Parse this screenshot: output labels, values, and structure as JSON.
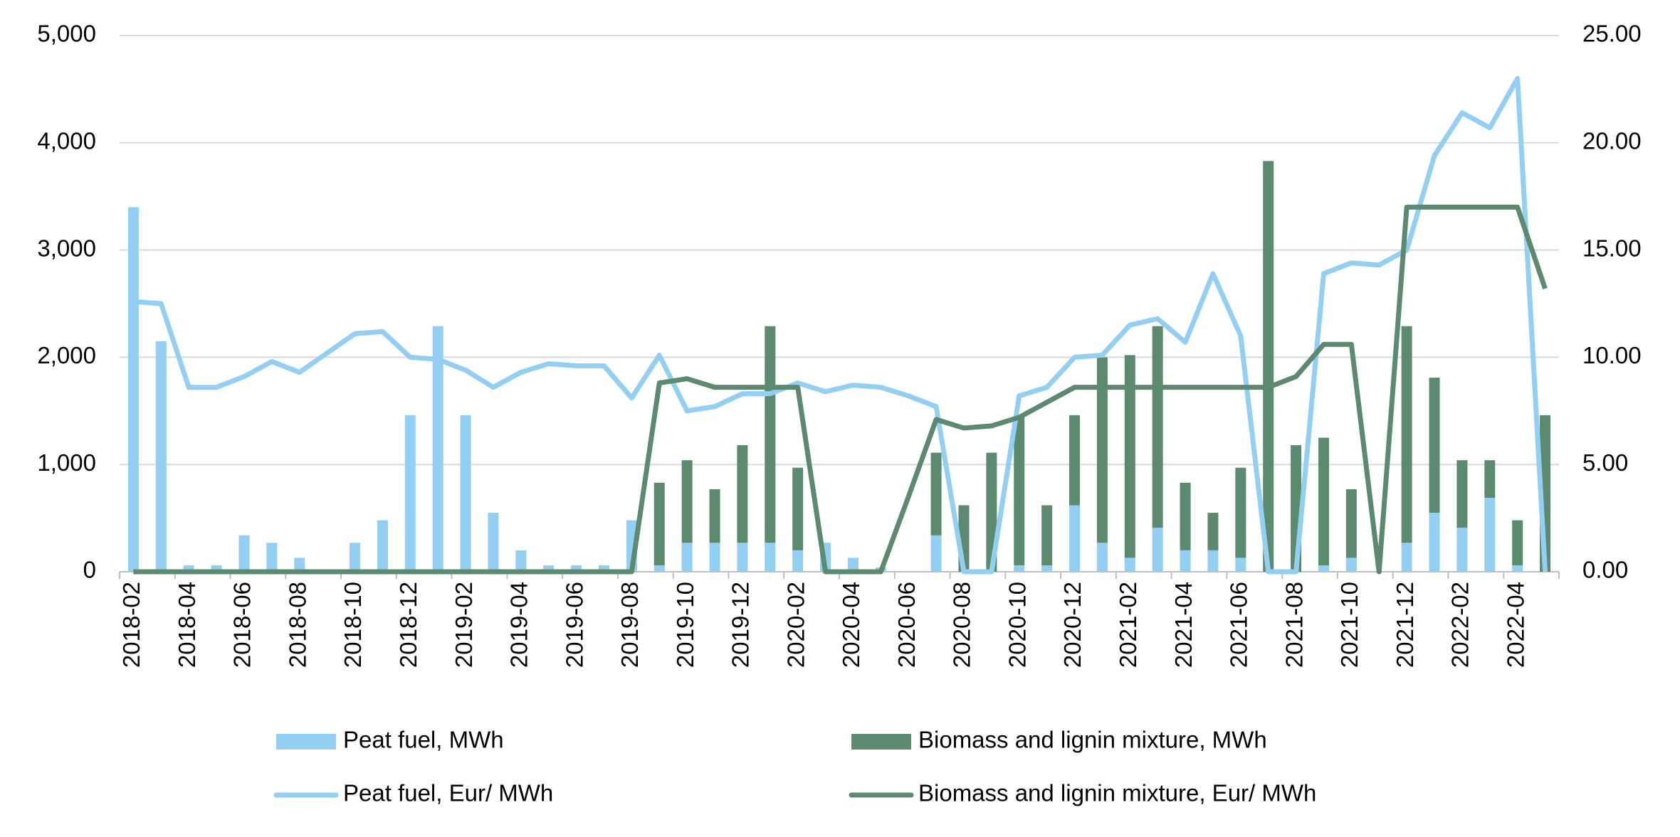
{
  "chart_data": {
    "type": "bar",
    "stacked": true,
    "grid": true,
    "categories": [
      "2018-02",
      null,
      "2018-04",
      null,
      "2018-06",
      null,
      "2018-08",
      null,
      "2018-10",
      null,
      "2018-12",
      null,
      "2019-02",
      null,
      "2019-04",
      null,
      "2019-06",
      null,
      "2019-08",
      null,
      "2019-10",
      null,
      "2019-12",
      null,
      "2020-02",
      null,
      "2020-04",
      null,
      "2020-06",
      null,
      "2020-08",
      null,
      "2020-10",
      null,
      "2020-12",
      null,
      "2021-02",
      null,
      "2021-04",
      null,
      "2021-06",
      null,
      "2021-08",
      null,
      "2021-10",
      null,
      "2021-12",
      null,
      "2022-02",
      null,
      "2022-04",
      null
    ],
    "ylim": [
      0,
      5000
    ],
    "yticks": [
      0,
      {
        "value": 1000,
        "label": "1,000"
      },
      {
        "value": 2000,
        "label": "2,000"
      },
      {
        "value": 3000,
        "label": "3,000"
      },
      {
        "value": 4000,
        "label": "4,000"
      },
      {
        "value": 5000,
        "label": "5,000"
      }
    ],
    "y2lim": [
      0,
      25
    ],
    "y2ticks": [
      {
        "value": 0,
        "label": "0.00"
      },
      {
        "value": 5,
        "label": "5.00"
      },
      {
        "value": 10,
        "label": "10.00"
      },
      {
        "value": 15,
        "label": "15.00"
      },
      {
        "value": 20,
        "label": "20.00"
      },
      {
        "value": 25,
        "label": "25.00"
      }
    ],
    "series": [
      {
        "name": "Peat fuel, MWh",
        "type": "bar",
        "color": "#92cff3",
        "values": [
          3400,
          2150,
          60,
          60,
          340,
          270,
          130,
          0,
          270,
          480,
          1460,
          2290,
          1460,
          550,
          200,
          60,
          60,
          60,
          480,
          60,
          270,
          270,
          270,
          270,
          200,
          270,
          130,
          40,
          0,
          340,
          0,
          0,
          60,
          60,
          620,
          270,
          130,
          410,
          200,
          200,
          130,
          0,
          0,
          60,
          130,
          0,
          270,
          550,
          410,
          690,
          60,
          0
        ]
      },
      {
        "name": "Biomass and lignin mixture, MWh",
        "type": "bar",
        "color": "#5b8a6e",
        "values": [
          0,
          0,
          0,
          0,
          0,
          0,
          0,
          0,
          0,
          0,
          0,
          0,
          0,
          0,
          0,
          0,
          0,
          0,
          0,
          770,
          770,
          500,
          910,
          2020,
          770,
          0,
          0,
          0,
          0,
          770,
          620,
          1110,
          1400,
          560,
          840,
          1730,
          1890,
          1880,
          630,
          350,
          840,
          3830,
          1180,
          1190,
          640,
          0,
          2020,
          1260,
          630,
          350,
          420,
          1460
        ]
      },
      {
        "name": "Peat fuel, Eur/ MWh",
        "type": "line",
        "axis": "y2",
        "color": "#92cff3",
        "values": [
          12.6,
          12.5,
          8.6,
          8.6,
          9.1,
          9.8,
          9.3,
          10.2,
          11.1,
          11.2,
          10.0,
          9.9,
          9.4,
          8.6,
          9.3,
          9.7,
          9.6,
          9.6,
          8.1,
          10.1,
          7.5,
          7.7,
          8.3,
          8.3,
          8.8,
          8.4,
          8.7,
          8.6,
          8.2,
          7.7,
          0,
          0,
          8.2,
          8.6,
          10.0,
          10.1,
          11.5,
          11.8,
          10.7,
          13.9,
          11.0,
          0,
          0,
          13.9,
          14.4,
          14.3,
          15.0,
          19.4,
          21.4,
          20.7,
          23.0,
          0
        ]
      },
      {
        "name": "Biomass and lignin mixture, Eur/ MWh",
        "type": "line",
        "axis": "y2",
        "color": "#5b8a6e",
        "values": [
          0,
          0,
          0,
          0,
          0,
          0,
          0,
          0,
          0,
          0,
          0,
          0,
          0,
          0,
          0,
          0,
          0,
          0,
          0,
          8.8,
          9.0,
          8.6,
          8.6,
          8.6,
          8.6,
          0,
          0,
          0,
          3.5,
          7.1,
          6.7,
          6.8,
          7.2,
          7.9,
          8.6,
          8.6,
          8.6,
          8.6,
          8.6,
          8.6,
          8.6,
          8.6,
          9.1,
          10.6,
          10.6,
          0,
          17.0,
          17.0,
          17.0,
          17.0,
          17.0,
          13.2
        ]
      }
    ]
  }
}
